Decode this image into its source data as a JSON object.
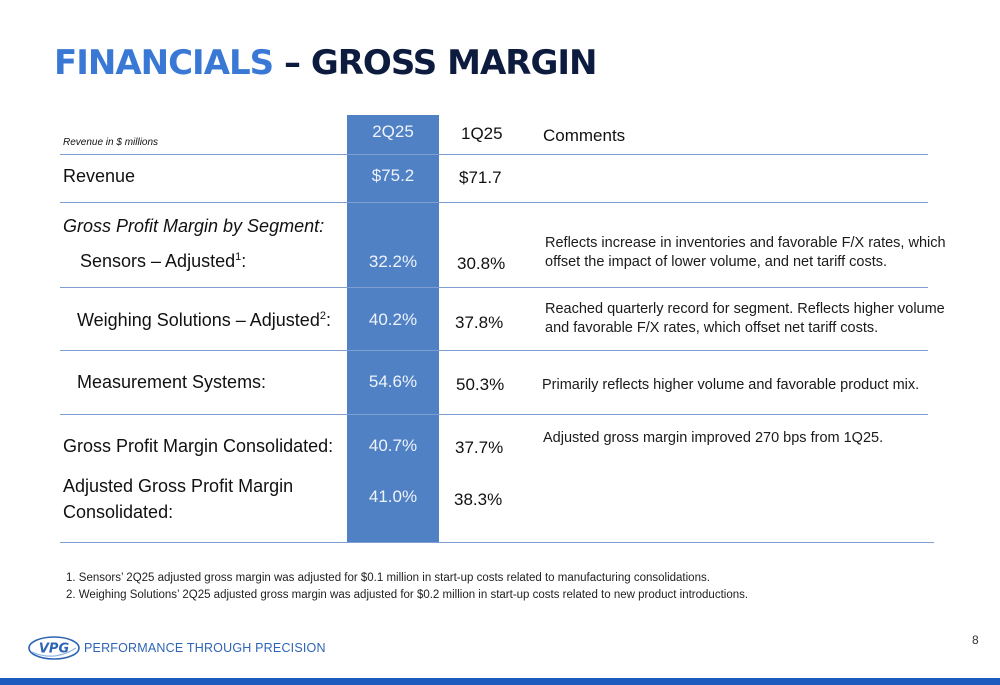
{
  "title": {
    "part1": "FINANCIALS",
    "part2": " – GROSS MARGIN"
  },
  "table": {
    "note": "Revenue in $ millions",
    "col_2q": "2Q25",
    "col_1q": "1Q25",
    "col_comments": "Comments",
    "revenue": {
      "label": "Revenue",
      "v2q": "$75.2",
      "v1q": "$71.7"
    },
    "segment_header": "Gross Profit Margin by Segment:",
    "sensors": {
      "label": "Sensors – Adjusted",
      "sup": "1",
      "suffix": ":",
      "v2q": "32.2%",
      "v1q": "30.8%",
      "comment_line1": "Reflects increase in inventories and favorable F/X rates, which",
      "comment_line2": "offset the impact of lower volume, and net tariff costs."
    },
    "weighing": {
      "label": "Weighing Solutions – Adjusted",
      "sup": "2",
      "suffix": ":",
      "v2q": "40.2%",
      "v1q": "37.8%",
      "comment_line1": "Reached quarterly record for segment.  Reflects higher volume",
      "comment_line2": "and favorable F/X rates, which offset net tariff costs."
    },
    "measurement": {
      "label": "Measurement Systems:",
      "v2q": "54.6%",
      "v1q": "50.3%",
      "comment": "Primarily reflects higher volume and favorable product mix."
    },
    "consolidated": {
      "label": "Gross Profit Margin Consolidated:",
      "v2q": "40.7%",
      "v1q": "37.7%",
      "comment": "Adjusted gross margin improved 270 bps from 1Q25."
    },
    "adjusted_consolidated": {
      "label_line1": "Adjusted Gross Profit Margin",
      "label_line2": "Consolidated:",
      "v2q": "41.0%",
      "v1q": "38.3%"
    }
  },
  "footnotes": [
    "1.   Sensors’ 2Q25 adjusted gross margin was adjusted for $0.1 million in start-up costs related to manufacturing consolidations.",
    "2.   Weighing Solutions’ 2Q25 adjusted gross margin was adjusted for $0.2 million in start-up costs related to new product introductions."
  ],
  "footer": {
    "logo_text": "VPG",
    "tagline": "PERFORMANCE THROUGH PRECISION",
    "page_number": "8"
  },
  "colors": {
    "accent": "#3a78d6",
    "dark": "#0d1b3e",
    "column": "#4f81c4",
    "bar": "#1d5bbf"
  }
}
